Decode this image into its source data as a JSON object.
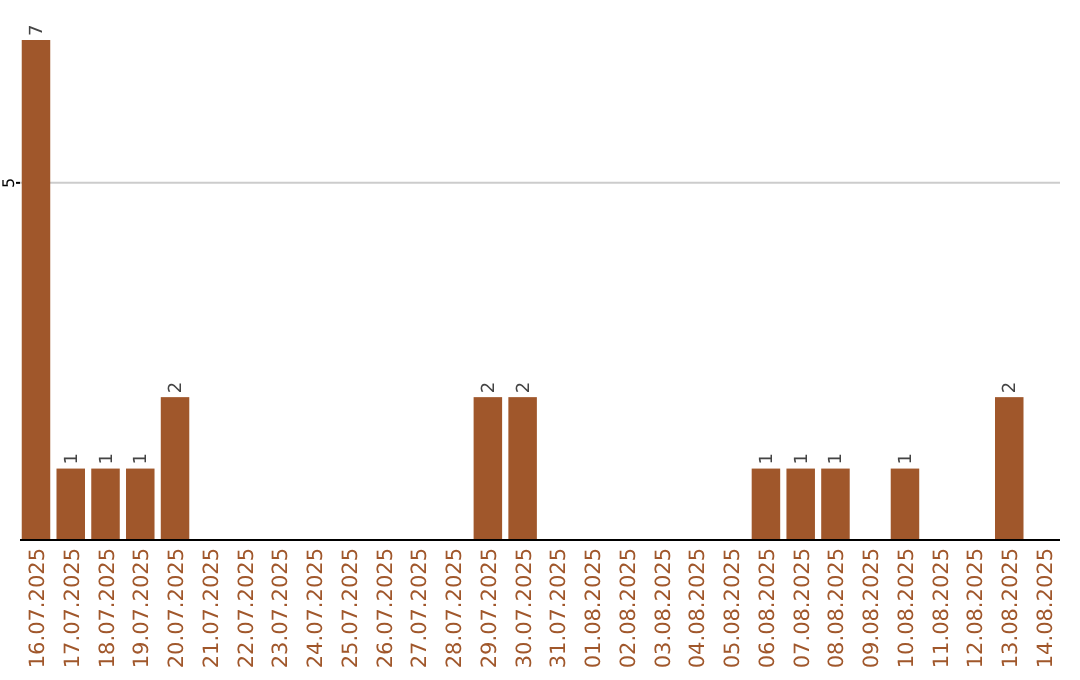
{
  "chart_data": {
    "type": "bar",
    "categories": [
      "16.07.2025",
      "17.07.2025",
      "18.07.2025",
      "19.07.2025",
      "20.07.2025",
      "21.07.2025",
      "22.07.2025",
      "23.07.2025",
      "24.07.2025",
      "25.07.2025",
      "26.07.2025",
      "27.07.2025",
      "28.07.2025",
      "29.07.2025",
      "30.07.2025",
      "31.07.2025",
      "01.08.2025",
      "02.08.2025",
      "03.08.2025",
      "04.08.2025",
      "05.08.2025",
      "06.08.2025",
      "07.08.2025",
      "08.08.2025",
      "09.08.2025",
      "10.08.2025",
      "11.08.2025",
      "12.08.2025",
      "13.08.2025",
      "14.08.2025"
    ],
    "values": [
      7,
      1,
      1,
      1,
      2,
      0,
      0,
      0,
      0,
      0,
      0,
      0,
      0,
      2,
      2,
      0,
      0,
      0,
      0,
      0,
      0,
      1,
      1,
      1,
      0,
      1,
      0,
      0,
      2,
      0
    ],
    "value_labels": [
      "7",
      "1",
      "1",
      "1",
      "2",
      null,
      null,
      null,
      null,
      null,
      null,
      null,
      null,
      "2",
      "2",
      null,
      null,
      null,
      null,
      null,
      null,
      "1",
      "1",
      "1",
      null,
      "1",
      null,
      null,
      "2",
      null
    ],
    "color": "#a0572b",
    "ylim": [
      0,
      7
    ],
    "yticks": [
      5
    ],
    "grid": "y"
  }
}
